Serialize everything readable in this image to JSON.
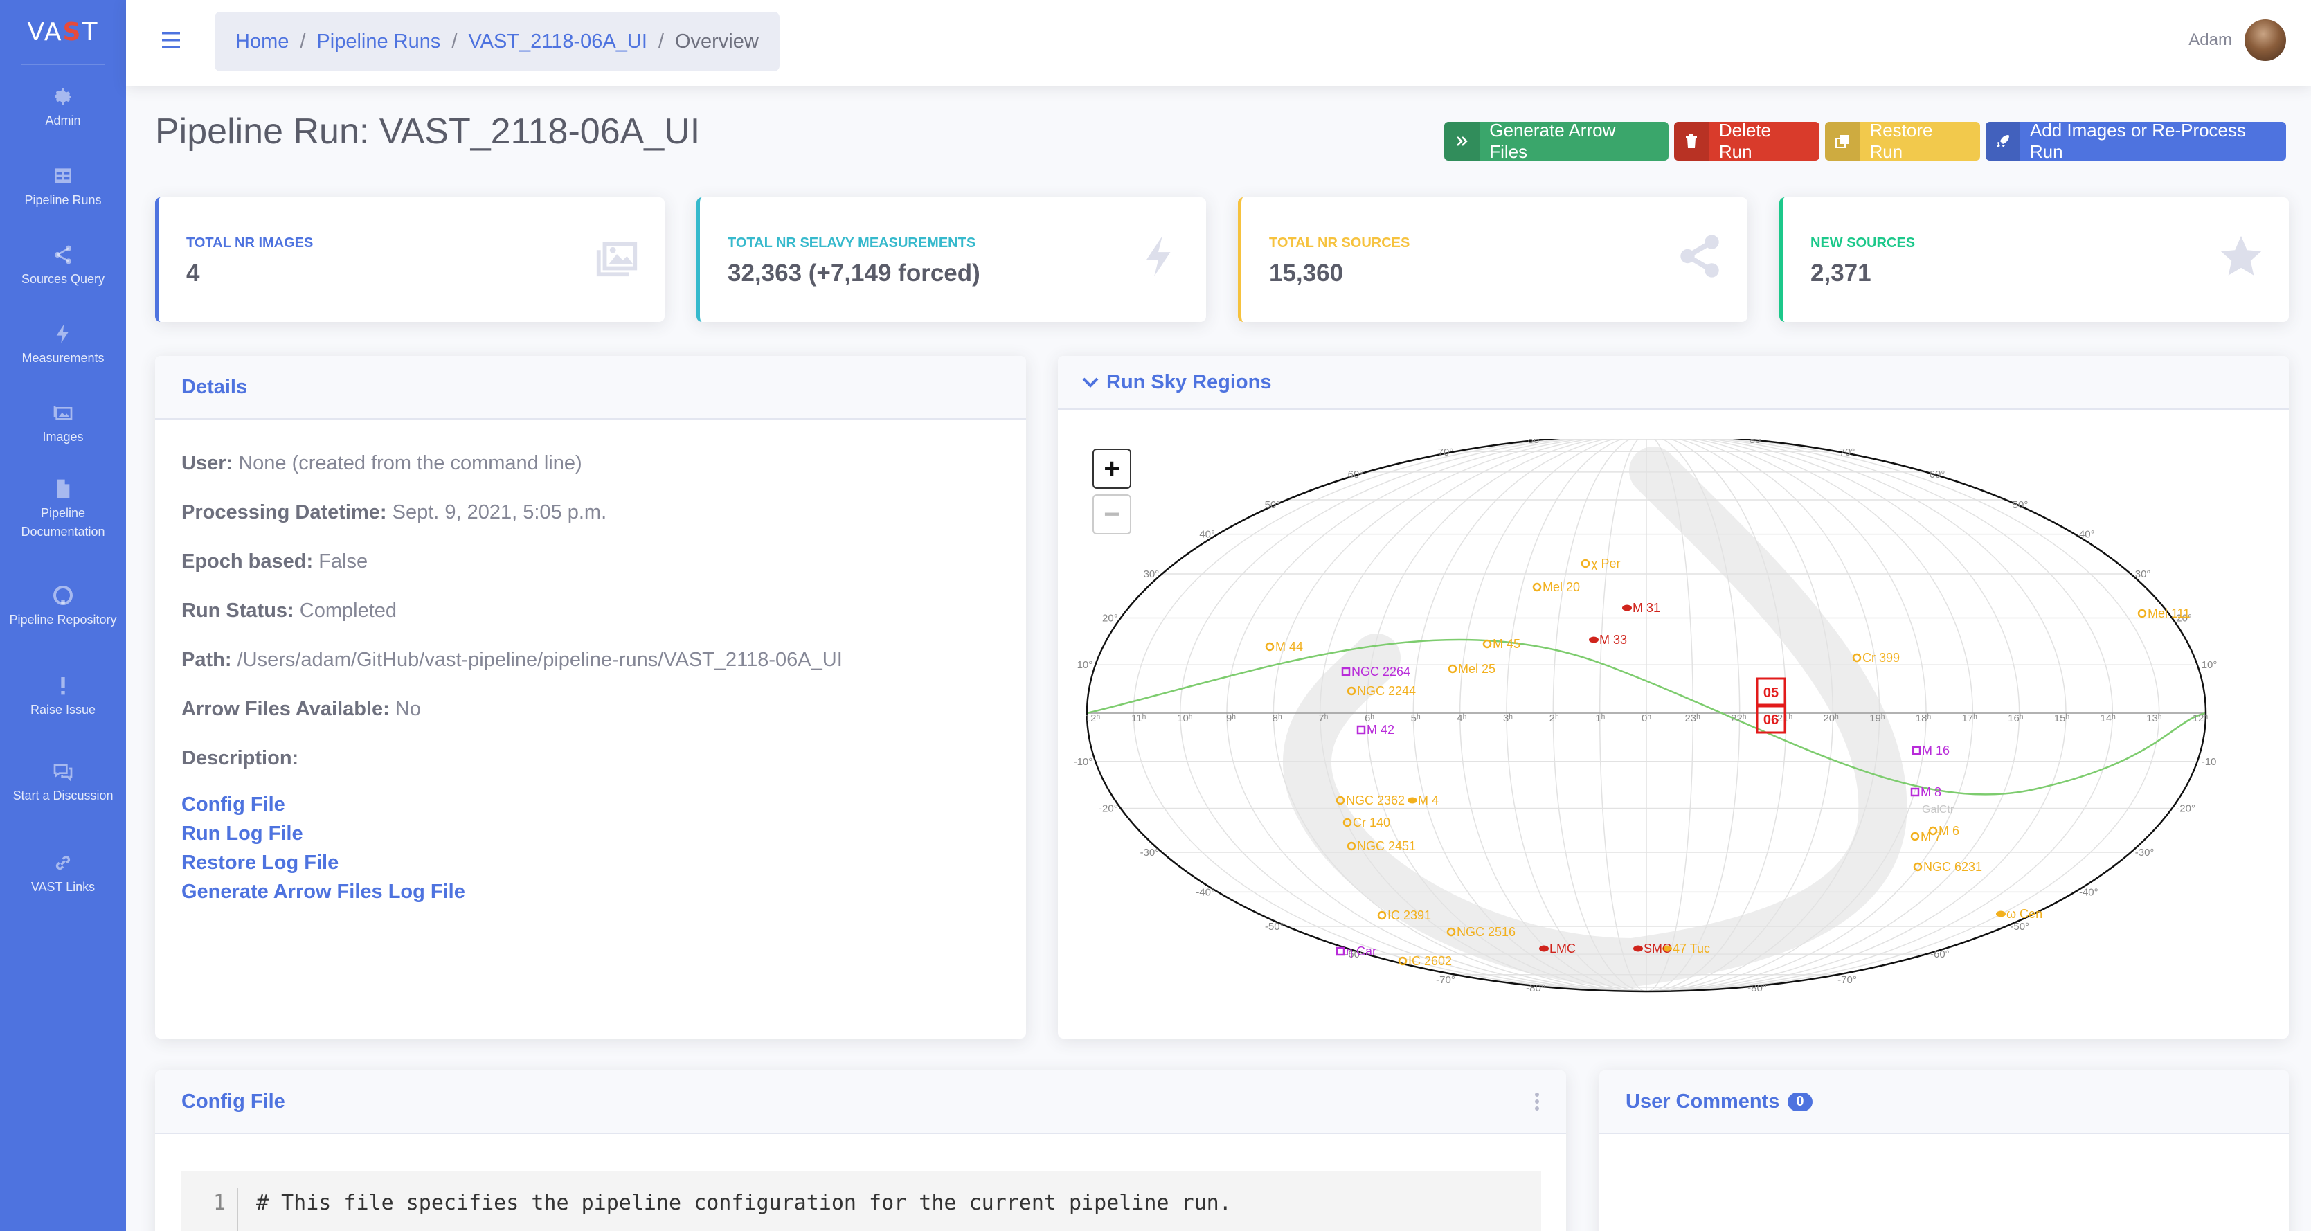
{
  "brand": {
    "text_left": "VA",
    "text_accent": "S",
    "text_right": "T"
  },
  "sidebar": {
    "items": [
      {
        "label": "Admin",
        "icon": "gear-icon"
      },
      {
        "label": "Pipeline Runs",
        "icon": "table-icon"
      },
      {
        "label": "Sources Query",
        "icon": "share-icon"
      },
      {
        "label": "Measurements",
        "icon": "bolt-icon"
      },
      {
        "label": "Images",
        "icon": "images-icon"
      },
      {
        "label": "Pipeline Documentation",
        "icon": "file-icon"
      },
      {
        "label": "Pipeline Repository",
        "icon": "github-icon"
      },
      {
        "label": "Raise Issue",
        "icon": "exclamation-icon"
      },
      {
        "label": "Start a Discussion",
        "icon": "comments-icon"
      },
      {
        "label": "VAST Links",
        "icon": "link-icon"
      }
    ]
  },
  "breadcrumb": {
    "home": "Home",
    "runs": "Pipeline Runs",
    "run": "VAST_2118-06A_UI",
    "current": "Overview"
  },
  "user": {
    "name": "Adam"
  },
  "page": {
    "title": "Pipeline Run: VAST_2118-06A_UI"
  },
  "actions": {
    "generate": "Generate Arrow Files",
    "delete": "Delete Run",
    "restore": "Restore Run",
    "add": "Add Images or Re-Process Run"
  },
  "colors": {
    "primary": "#4e73df",
    "success": "#1cc88a",
    "info": "#36b9cc",
    "warning": "#f6c23e",
    "danger": "#e74a3b",
    "btn_success": "#3aa66b",
    "btn_warning": "#f2c94c",
    "btn_danger": "#d93b2b"
  },
  "stats": [
    {
      "label": "TOTAL NR IMAGES",
      "value": "4"
    },
    {
      "label": "TOTAL NR SELAVY MEASUREMENTS",
      "value": "32,363 (+7,149 forced)"
    },
    {
      "label": "TOTAL NR SOURCES",
      "value": "15,360"
    },
    {
      "label": "NEW SOURCES",
      "value": "2,371"
    }
  ],
  "details": {
    "title": "Details",
    "user_label": "User:",
    "user_value": "None (created from the command line)",
    "datetime_label": "Processing Datetime:",
    "datetime_value": "Sept. 9, 2021, 5:05 p.m.",
    "epoch_label": "Epoch based:",
    "epoch_value": "False",
    "status_label": "Run Status:",
    "status_value": "Completed",
    "path_label": "Path:",
    "path_value": "/Users/adam/GitHub/vast-pipeline/pipeline-runs/VAST_2118-06A_UI",
    "arrow_label": "Arrow Files Available:",
    "arrow_value": "No",
    "description_label": "Description:",
    "links": [
      "Config File",
      "Run Log File",
      "Restore Log File",
      "Generate Arrow Files Log File"
    ]
  },
  "sky": {
    "title": "Run Sky Regions",
    "zoom_in": "+",
    "zoom_out": "−",
    "regions": [
      "05",
      "06"
    ],
    "top_labels": [
      "70°",
      "80°",
      "80°",
      "70°",
      "60°",
      "60°",
      "50°",
      "50°"
    ],
    "equator_labels": [
      "12ʰ",
      "11ʰ",
      "10ʰ",
      "9ʰ",
      "8ʰ",
      "7ʰ",
      "6ʰ",
      "5ʰ",
      "4ʰ",
      "3ʰ",
      "2ʰ",
      "1ʰ",
      "0ʰ",
      "23ʰ",
      "22ʰ",
      "21ʰ",
      "20ʰ",
      "19ʰ",
      "18ʰ",
      "17ʰ",
      "16ʰ",
      "15ʰ",
      "14ʰ",
      "13ʰ",
      "12ʰ"
    ],
    "left_labels": [
      "40°",
      "30°",
      "20°",
      "10°",
      "-10°",
      "-20°",
      "-30°",
      "-40°",
      "-50°",
      "-60°"
    ],
    "right_labels": [
      "40°",
      "30°",
      "20°",
      "10°",
      "-10",
      "-20°",
      "-30°",
      "-40°",
      "-50°",
      "-60°"
    ],
    "bottom_labels": [
      "-70°",
      "-80°",
      "-80°",
      "-70°"
    ],
    "objects_yellow": [
      "χ Per",
      "Mel 20",
      "M 44",
      "M 45",
      "Mel 25",
      "Cr 399",
      "NGC 2244",
      "Mel 111",
      "NGC 2362",
      "Cr 140",
      "NGC 2451",
      "M 6",
      "M 7",
      "NGC 6231",
      "IC 2391",
      "NGC 2516",
      "IC 2602",
      "47 Tuc",
      "ω Cen",
      "M 4"
    ],
    "objects_red": [
      "M 31",
      "M 33",
      "LMC",
      "SMC"
    ],
    "objects_purple": [
      "NGC 2264",
      "M 42",
      "M 16",
      "M 8",
      "η Car"
    ],
    "objects_other": [
      "GalCtr"
    ]
  },
  "config": {
    "title": "Config File",
    "line_number": "1",
    "line_text": "# This file specifies the pipeline configuration for the current pipeline run."
  },
  "comments": {
    "title": "User Comments",
    "count": "0"
  }
}
